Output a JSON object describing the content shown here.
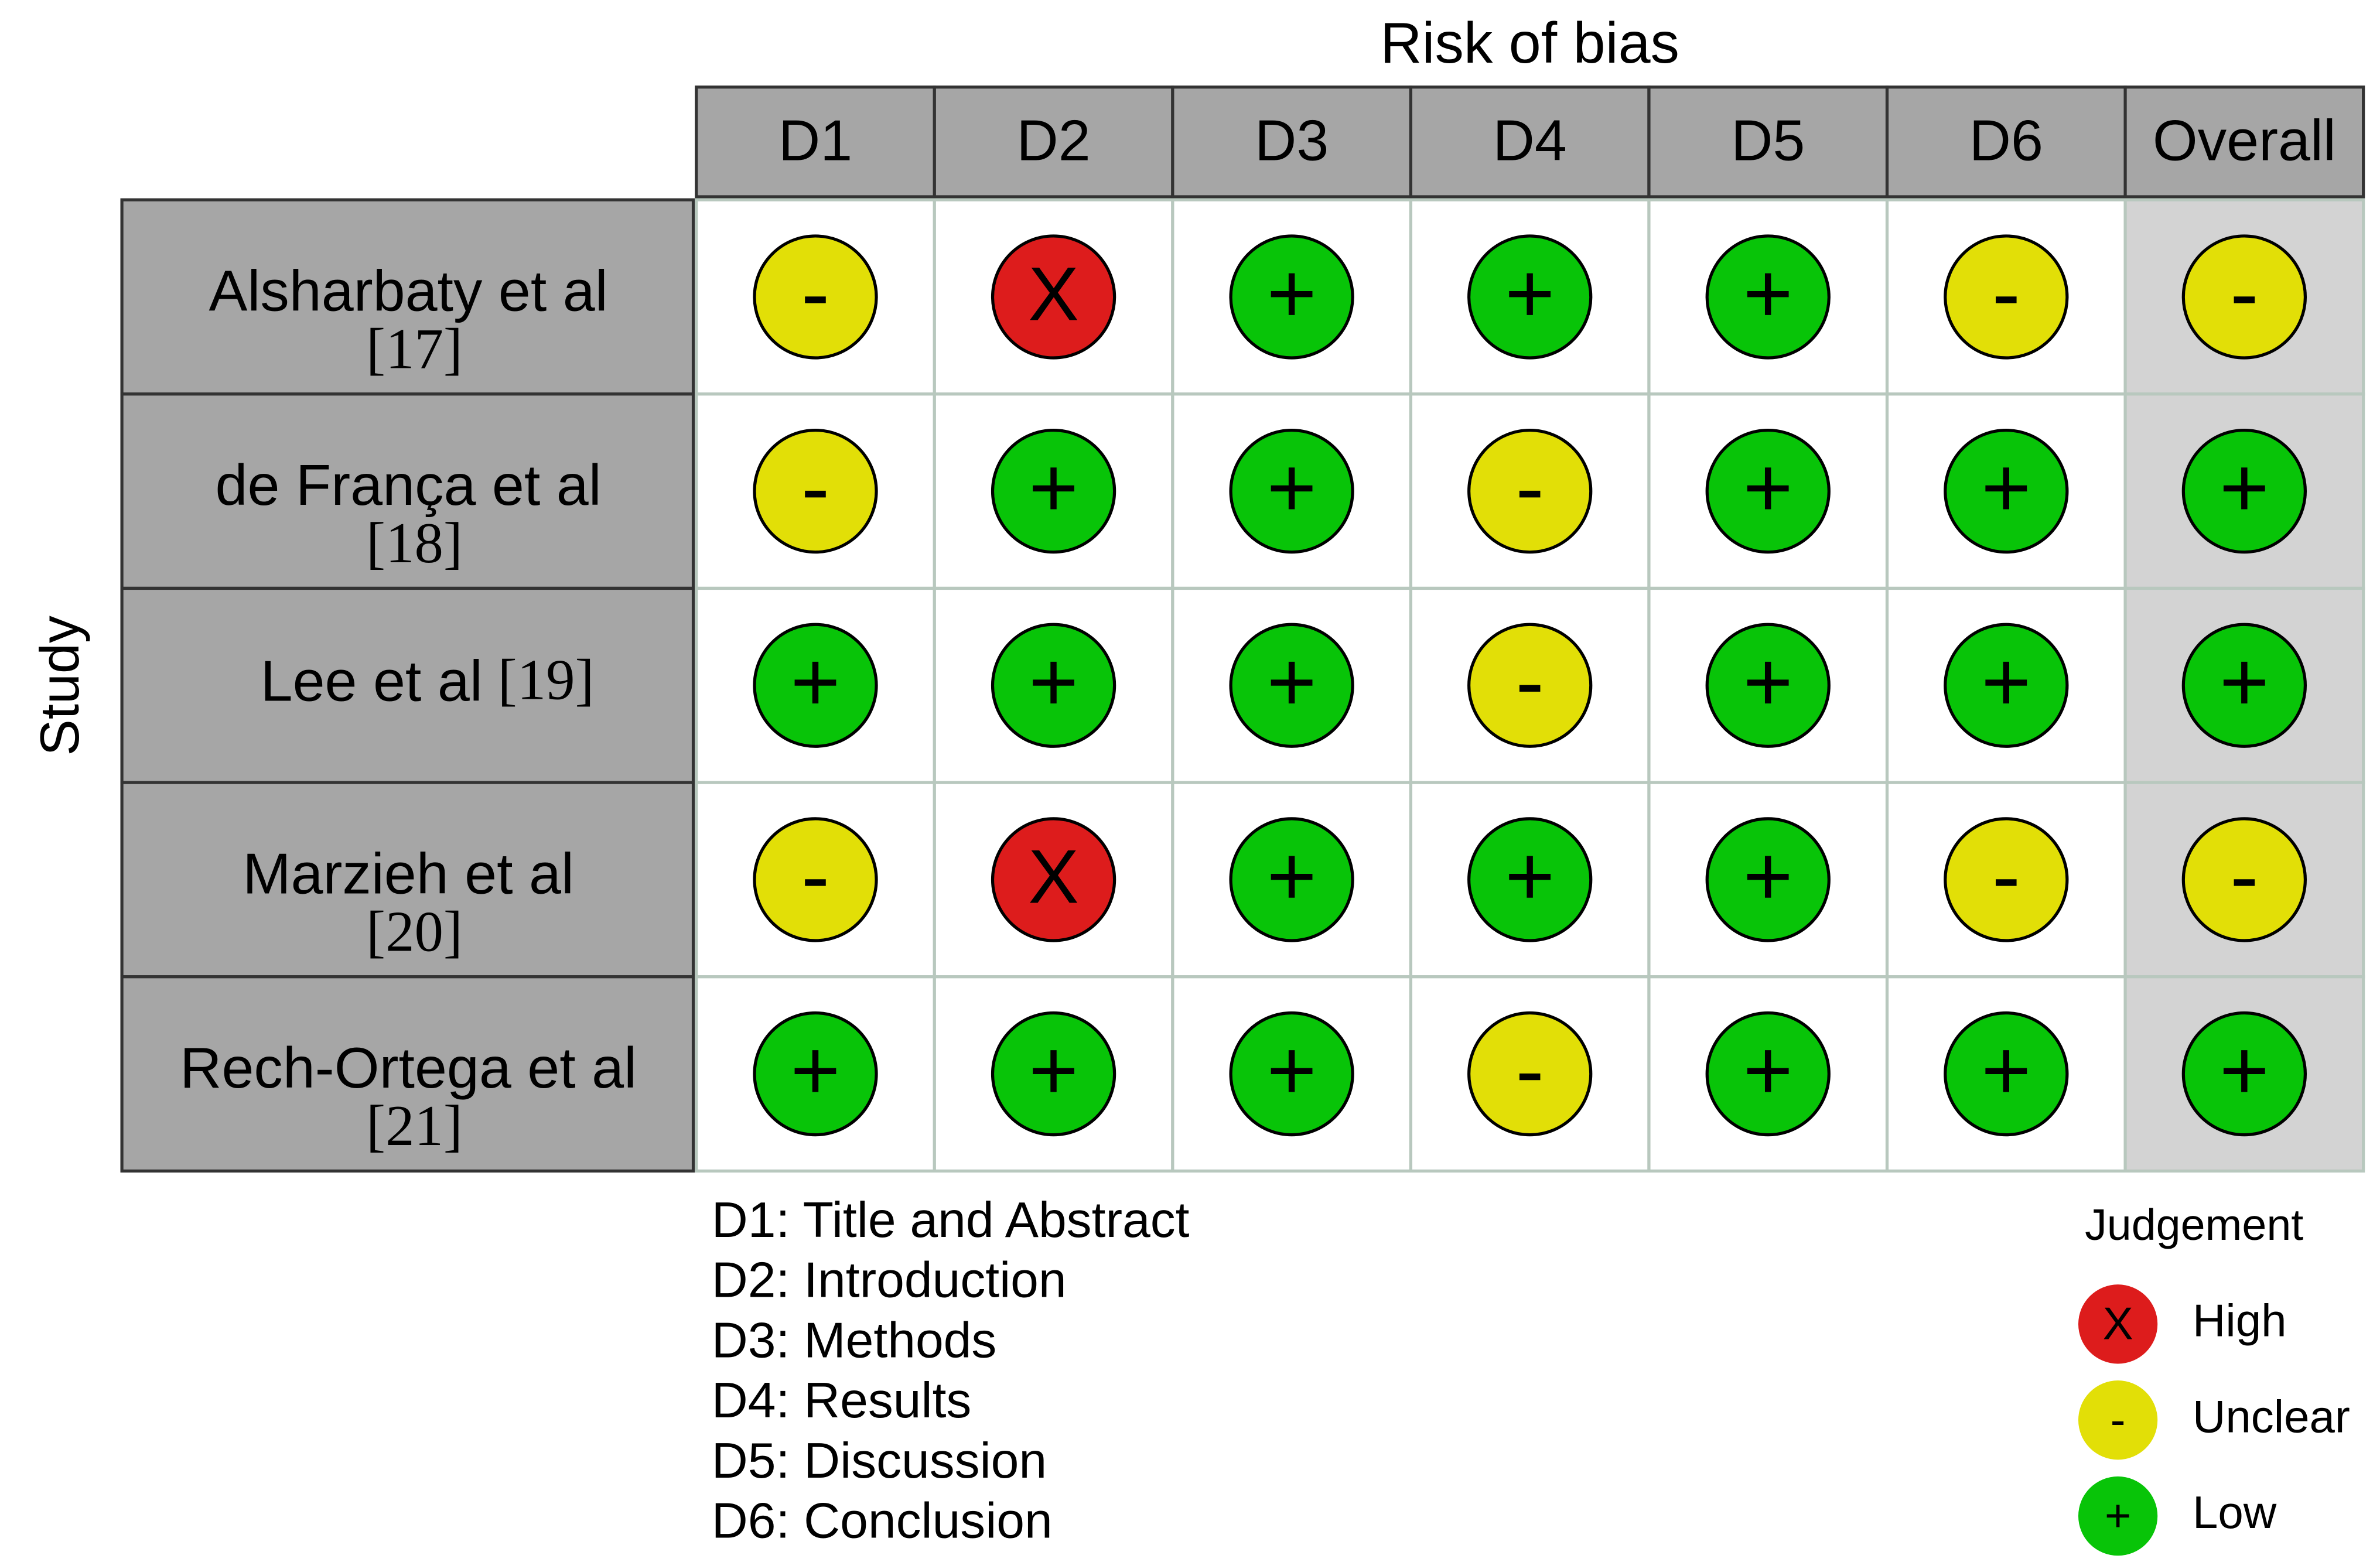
{
  "title": "Risk of bias",
  "y_label": "Study",
  "columns": [
    "D1",
    "D2",
    "D3",
    "D4",
    "D5",
    "D6",
    "Overall"
  ],
  "rows": [
    {
      "study": "Alsharbaty et al",
      "ref": "[17]",
      "cells": [
        "-",
        "X",
        "+",
        "+",
        "+",
        "-",
        "-"
      ]
    },
    {
      "study": "de França et al",
      "ref": "[18]",
      "cells": [
        "-",
        "+",
        "+",
        "-",
        "+",
        "+",
        "+"
      ]
    },
    {
      "study": "Lee et al",
      "ref": "[19]",
      "cells": [
        "+",
        "+",
        "+",
        "-",
        "+",
        "+",
        "+"
      ]
    },
    {
      "study": "Marzieh et al",
      "ref": "[20]",
      "cells": [
        "-",
        "X",
        "+",
        "+",
        "+",
        "-",
        "-"
      ]
    },
    {
      "study": "Rech-Ortega et al",
      "ref": "[21]",
      "cells": [
        "+",
        "+",
        "+",
        "-",
        "+",
        "+",
        "+"
      ]
    }
  ],
  "domains": [
    "D1: Title and Abstract",
    "D2: Introduction",
    "D3: Methods",
    "D4: Results",
    "D5: Discussion",
    "D6: Conclusion"
  ],
  "legend": {
    "title": "Judgement",
    "items": [
      {
        "symbol": "X",
        "label": "High",
        "color": "#dd1c1c"
      },
      {
        "symbol": "-",
        "label": "Unclear",
        "color": "#e2df07"
      },
      {
        "symbol": "+",
        "label": "Low",
        "color": "#08c408"
      }
    ]
  }
}
